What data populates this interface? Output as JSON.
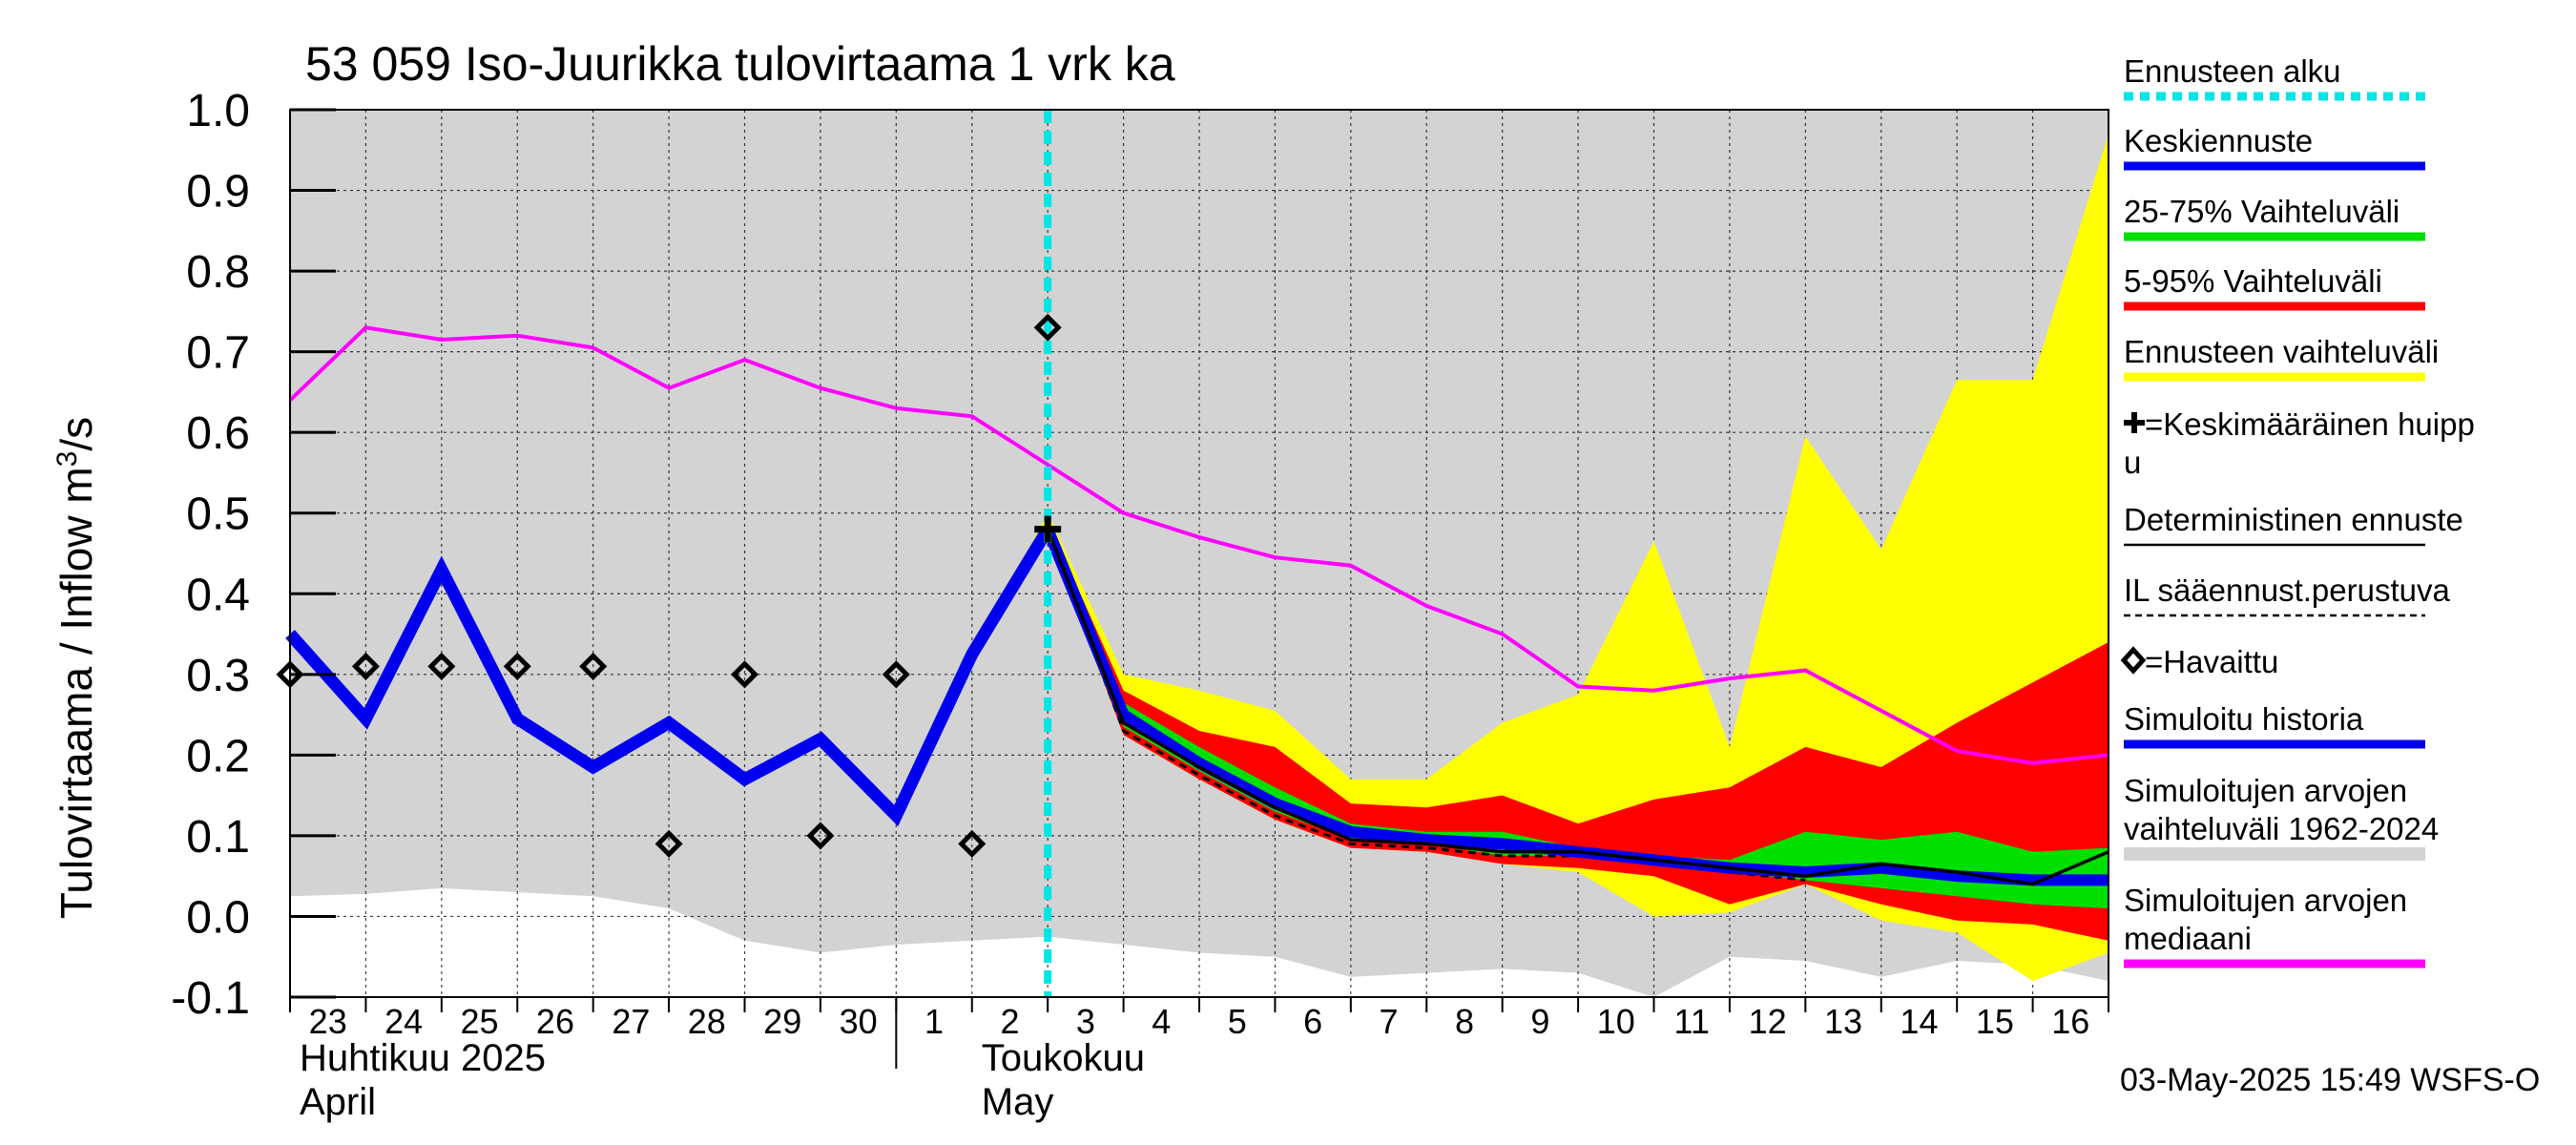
{
  "chart_data": {
    "type": "line",
    "title": "53 059 Iso-Juurikka tulovirtaama 1 vrk ka",
    "ylabel": "Tulovirtaama / Inflow",
    "yunit_base": "m",
    "yunit_sup": "3",
    "yunit_tail": "/s",
    "ylim": [
      -0.1,
      1.0
    ],
    "yticks": [
      -0.1,
      0.0,
      0.1,
      0.2,
      0.3,
      0.4,
      0.5,
      0.6,
      0.7,
      0.8,
      0.9,
      1.0
    ],
    "ytick_labels": [
      "-0.1",
      "0.0",
      "0.1",
      "0.2",
      "0.3",
      "0.4",
      "0.5",
      "0.6",
      "0.7",
      "0.8",
      "0.9",
      "1.0"
    ],
    "xlim": [
      0,
      24
    ],
    "x_tick_labels": [
      "23",
      "24",
      "25",
      "26",
      "27",
      "28",
      "29",
      "30",
      "1",
      "2",
      "3",
      "4",
      "5",
      "6",
      "7",
      "8",
      "9",
      "10",
      "11",
      "12",
      "13",
      "14",
      "15",
      "16"
    ],
    "month_labels": [
      {
        "line1": "Huhtikuu  2025",
        "line2": "April",
        "start_index": 0
      },
      {
        "line1": "Toukokuu",
        "line2": "May",
        "start_index": 9
      }
    ],
    "month_separator_x": 8,
    "forecast_start_x": 10,
    "colors": {
      "hist_band": "#d3d3d3",
      "forecast_range": "#ffff00",
      "p5_95": "#ff0000",
      "p25_75": "#00e000",
      "mean": "#0000ee",
      "deterministic": "#000000",
      "median": "#ff00ff",
      "sim_history": "#0000ee",
      "forecast_start": "#00e5e5"
    },
    "hist_band": {
      "x": [
        0,
        1,
        2,
        3,
        4,
        5,
        6,
        7,
        8,
        9,
        10,
        11,
        12,
        13,
        14,
        15,
        16,
        17,
        18,
        19,
        20,
        21,
        22,
        23,
        24
      ],
      "upper": [
        1.0,
        1.0,
        1.0,
        1.0,
        1.0,
        1.0,
        1.0,
        1.0,
        1.0,
        1.0,
        1.0,
        1.0,
        1.0,
        1.0,
        1.0,
        1.0,
        1.0,
        1.0,
        1.0,
        1.0,
        1.0,
        1.0,
        1.0,
        1.0,
        1.0
      ],
      "lower": [
        0.025,
        0.028,
        0.035,
        0.03,
        0.025,
        0.01,
        -0.03,
        -0.045,
        -0.035,
        -0.03,
        -0.025,
        -0.035,
        -0.045,
        -0.05,
        -0.075,
        -0.07,
        -0.065,
        -0.07,
        -0.1,
        -0.05,
        -0.055,
        -0.075,
        -0.055,
        -0.06,
        -0.08
      ]
    },
    "median": {
      "x": [
        0,
        1,
        2,
        3,
        4,
        5,
        6,
        7,
        8,
        9,
        10,
        11,
        12,
        13,
        14,
        15,
        16,
        17,
        18,
        19,
        20,
        21,
        22,
        23,
        24
      ],
      "values": [
        0.64,
        0.73,
        0.715,
        0.72,
        0.705,
        0.655,
        0.69,
        0.655,
        0.63,
        0.62,
        0.56,
        0.5,
        0.47,
        0.445,
        0.435,
        0.385,
        0.35,
        0.285,
        0.28,
        0.295,
        0.305,
        0.255,
        0.205,
        0.19,
        0.2
      ]
    },
    "sim_history": {
      "x": [
        0,
        1,
        2,
        3,
        4,
        5,
        6,
        7,
        8,
        9,
        10
      ],
      "values": [
        0.35,
        0.245,
        0.43,
        0.245,
        0.185,
        0.24,
        0.17,
        0.22,
        0.125,
        0.325,
        0.48
      ]
    },
    "observed": {
      "x": [
        0,
        1,
        2,
        3,
        4,
        5,
        6,
        7,
        8,
        9,
        10
      ],
      "values": [
        0.3,
        0.31,
        0.31,
        0.31,
        0.31,
        0.09,
        0.3,
        0.1,
        0.3,
        0.09,
        0.73
      ]
    },
    "forecast_range": {
      "x": [
        9,
        10,
        11,
        12,
        13,
        14,
        15,
        16,
        17,
        18,
        19,
        20,
        21,
        22,
        23,
        24
      ],
      "upper": [
        0.325,
        0.5,
        0.3,
        0.28,
        0.255,
        0.17,
        0.17,
        0.24,
        0.275,
        0.465,
        0.21,
        0.595,
        0.455,
        0.665,
        0.665,
        0.97
      ],
      "lower": [
        0.325,
        0.47,
        0.225,
        0.17,
        0.12,
        0.085,
        0.08,
        0.065,
        0.055,
        0.0,
        0.005,
        0.04,
        -0.005,
        -0.02,
        -0.08,
        -0.045
      ]
    },
    "p5_95": {
      "x": [
        10,
        11,
        12,
        13,
        14,
        15,
        16,
        17,
        18,
        19,
        20,
        21,
        22,
        23,
        24
      ],
      "upper": [
        0.49,
        0.28,
        0.23,
        0.21,
        0.14,
        0.135,
        0.15,
        0.115,
        0.145,
        0.16,
        0.21,
        0.185,
        0.24,
        0.29,
        0.34
      ],
      "lower": [
        0.475,
        0.225,
        0.17,
        0.12,
        0.085,
        0.08,
        0.065,
        0.06,
        0.05,
        0.015,
        0.04,
        0.015,
        -0.005,
        -0.01,
        -0.03
      ]
    },
    "p25_75": {
      "x": [
        10,
        11,
        12,
        13,
        14,
        15,
        16,
        17,
        18,
        19,
        20,
        21,
        22,
        23,
        24
      ],
      "upper": [
        0.485,
        0.265,
        0.21,
        0.16,
        0.115,
        0.105,
        0.105,
        0.085,
        0.075,
        0.07,
        0.105,
        0.095,
        0.105,
        0.08,
        0.085
      ],
      "lower": [
        0.48,
        0.235,
        0.18,
        0.13,
        0.095,
        0.09,
        0.075,
        0.075,
        0.065,
        0.055,
        0.045,
        0.035,
        0.025,
        0.015,
        0.01
      ]
    },
    "mean_forecast": {
      "x": [
        10,
        11,
        12,
        13,
        14,
        15,
        16,
        17,
        18,
        19,
        20,
        21,
        22,
        23,
        24
      ],
      "values": [
        0.48,
        0.25,
        0.19,
        0.14,
        0.105,
        0.095,
        0.09,
        0.08,
        0.07,
        0.06,
        0.055,
        0.06,
        0.05,
        0.045,
        0.045
      ]
    },
    "deterministic": {
      "x": [
        10,
        11,
        12,
        13,
        14,
        15,
        16,
        17,
        18,
        19,
        20,
        21,
        22,
        23,
        24
      ],
      "values": [
        0.48,
        0.24,
        0.185,
        0.135,
        0.095,
        0.09,
        0.08,
        0.08,
        0.07,
        0.06,
        0.05,
        0.065,
        0.055,
        0.04,
        0.08
      ]
    },
    "il_forecast": {
      "x": [
        10,
        11,
        12,
        13,
        14,
        15,
        16,
        17,
        18,
        19,
        20
      ],
      "values": [
        0.48,
        0.23,
        0.175,
        0.125,
        0.09,
        0.085,
        0.075,
        0.075,
        0.065,
        0.055,
        0.045
      ]
    },
    "mean_peak": {
      "x": 10,
      "value": 0.48
    },
    "legend": [
      {
        "key": "forecast_start",
        "label": "Ennusteen alku",
        "style": "dotted"
      },
      {
        "key": "mean",
        "label": "Keskiennuste",
        "style": "line"
      },
      {
        "key": "p25_75",
        "label": "25-75% Vaihteluväli",
        "style": "line"
      },
      {
        "key": "p5_95",
        "label": "5-95% Vaihteluväli",
        "style": "line"
      },
      {
        "key": "forecast_range",
        "label": "Ennusteen vaihteluväli",
        "style": "line"
      },
      {
        "key": "peak",
        "label": "=Keskimääräinen huipp",
        "label2": "u",
        "style": "marker-plus"
      },
      {
        "key": "deterministic",
        "label": "Deterministinen ennuste",
        "style": "thin"
      },
      {
        "key": "il",
        "label": "IL sääennust.perustuva",
        "style": "dashed"
      },
      {
        "key": "observed",
        "label": "=Havaittu",
        "style": "marker-diamond"
      },
      {
        "key": "sim_history",
        "label": "Simuloitu historia",
        "style": "line"
      },
      {
        "key": "hist_band",
        "label": "Simuloitujen arvojen",
        "label2": "vaihteluväli 1962-2024",
        "style": "line"
      },
      {
        "key": "median",
        "label": "Simuloitujen arvojen",
        "label2": "mediaani",
        "style": "line"
      }
    ],
    "footer": "03-May-2025 15:49 WSFS-O"
  }
}
